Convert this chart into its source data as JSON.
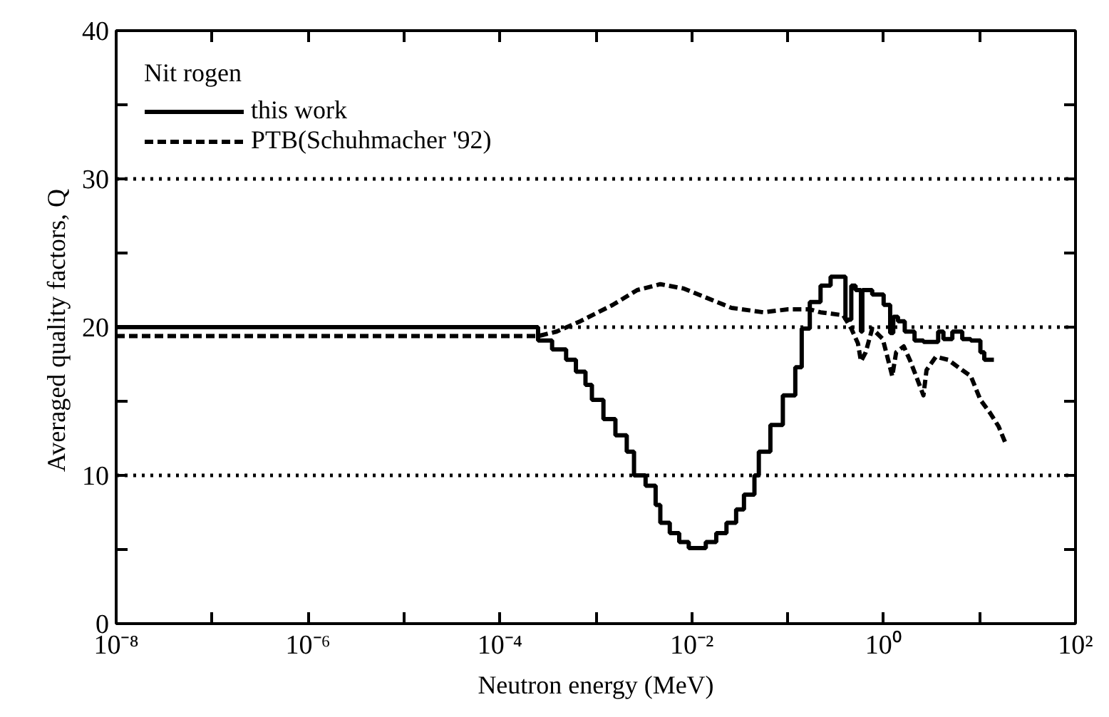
{
  "chart_data": {
    "type": "step",
    "xlabel": "Neutron energy (MeV)",
    "ylabel": "Averaged quality  factors, Q",
    "legend_title": "Nit rogen",
    "legend": "top left",
    "log": "x",
    "grid": false,
    "xlim": [
      1e-08,
      100
    ],
    "ylim": [
      0,
      40
    ],
    "xticks": [
      {
        "value": 1e-08,
        "label": "10⁻⁸"
      },
      {
        "value": 1e-07,
        "label": null
      },
      {
        "value": 1e-06,
        "label": "10⁻⁶"
      },
      {
        "value": 1e-05,
        "label": null
      },
      {
        "value": 0.0001,
        "label": "10⁻⁴"
      },
      {
        "value": 0.001,
        "label": null
      },
      {
        "value": 0.01,
        "label": "10⁻²"
      },
      {
        "value": 0.1,
        "label": null
      },
      {
        "value": 1,
        "label": "10⁰"
      },
      {
        "value": 10,
        "label": null
      },
      {
        "value": 100,
        "label": "10²"
      }
    ],
    "yticks": [
      0,
      {
        "value": 5,
        "label": null
      },
      10,
      {
        "value": 15,
        "label": null
      },
      20,
      {
        "value": 25,
        "label": null
      },
      30,
      {
        "value": 35,
        "label": null
      },
      40
    ],
    "ref_lines": [
      {
        "axis": "y",
        "value": 10,
        "label": null,
        "line_style": "dotted"
      },
      {
        "axis": "y",
        "value": 20,
        "label": null,
        "line_style": "dotted"
      },
      {
        "axis": "y",
        "value": 30,
        "label": null,
        "line_style": "dotted"
      }
    ],
    "series": [
      {
        "name": "this work",
        "color": "#000000",
        "line_style": "solid",
        "x": [
          1e-08,
          0.00025,
          0.00035,
          0.00049,
          0.00062,
          0.00078,
          0.00091,
          0.0012,
          0.0016,
          0.0021,
          0.0025,
          0.0033,
          0.0042,
          0.0047,
          0.0059,
          0.0074,
          0.0093,
          0.014,
          0.018,
          0.023,
          0.029,
          0.035,
          0.045,
          0.05,
          0.066,
          0.089,
          0.12,
          0.14,
          0.17,
          0.22,
          0.28,
          0.4,
          0.46,
          0.51,
          0.58,
          0.6,
          0.76,
          1.0,
          1.17,
          1.26,
          1.41,
          1.66,
          2.1,
          2.6,
          3.7,
          4.2,
          5.2,
          6.6,
          8.1,
          10.2,
          11.2,
          14.1
        ],
        "values": [
          20.0,
          19.1,
          18.5,
          17.8,
          17.0,
          16.1,
          15.1,
          13.8,
          12.7,
          11.6,
          10.0,
          9.3,
          8.0,
          6.8,
          6.1,
          5.5,
          5.1,
          5.5,
          6.1,
          6.8,
          7.7,
          8.7,
          10.0,
          11.6,
          13.4,
          15.4,
          17.3,
          19.9,
          21.7,
          22.8,
          23.4,
          20.5,
          22.8,
          22.5,
          19.7,
          22.5,
          22.2,
          21.5,
          19.6,
          20.7,
          20.4,
          19.7,
          19.1,
          19.0,
          19.7,
          19.2,
          19.7,
          19.2,
          19.1,
          18.3,
          17.8,
          17.8
        ]
      },
      {
        "name": "PTB(Schuhmacher '92)",
        "type": "line",
        "color": "#000000",
        "line_style": "dashed",
        "x": [
          1e-08,
          0.00025,
          0.00039,
          0.00069,
          0.0015,
          0.0027,
          0.0047,
          0.0083,
          0.014,
          0.026,
          0.056,
          0.1,
          0.17,
          0.22,
          0.38,
          0.46,
          0.54,
          0.58,
          0.65,
          0.76,
          0.98,
          1.23,
          1.35,
          1.62,
          1.9,
          2.6,
          2.8,
          3.5,
          4.7,
          6.6,
          8.1,
          10.2,
          12.9,
          15.8,
          19.1
        ],
        "values": [
          19.4,
          19.4,
          19.7,
          20.4,
          21.5,
          22.5,
          22.9,
          22.6,
          22.0,
          21.3,
          21.0,
          21.2,
          21.2,
          21.0,
          20.8,
          19.9,
          18.9,
          17.7,
          18.3,
          19.9,
          19.2,
          16.7,
          18.3,
          18.7,
          17.7,
          15.4,
          17.1,
          18.0,
          17.8,
          17.1,
          16.7,
          15.1,
          14.2,
          13.3,
          12.0
        ]
      }
    ]
  }
}
